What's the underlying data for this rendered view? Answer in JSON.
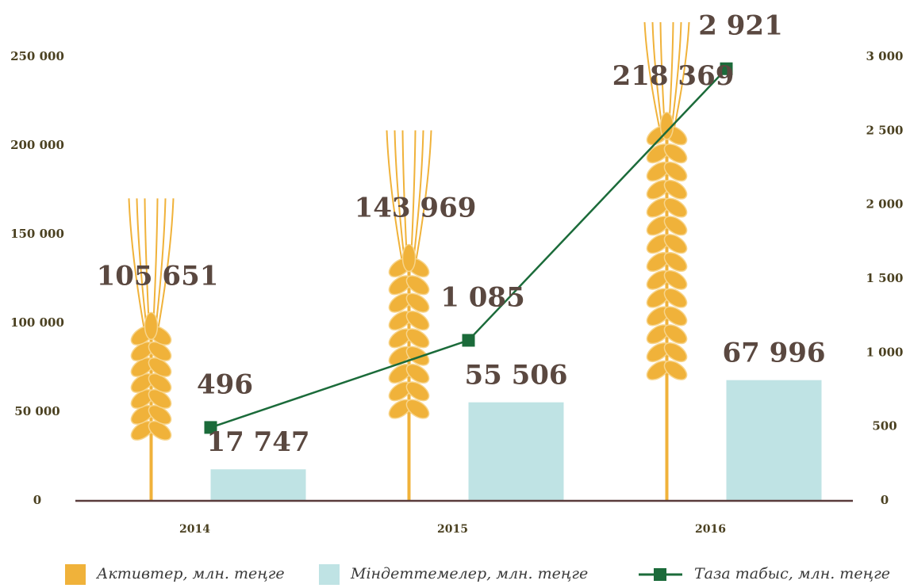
{
  "chart_data": {
    "type": "combo",
    "categories": [
      "2014",
      "2015",
      "2016"
    ],
    "series": [
      {
        "name": "Активтер, млн. теңге",
        "type": "wheat",
        "color": "#f0b23a",
        "values": [
          105651,
          143969,
          218369
        ],
        "value_labels": [
          "105 651",
          "143 969",
          "218 369"
        ]
      },
      {
        "name": "Міндеттемелер, млн. теңге",
        "type": "bar",
        "color": "#bfe3e4",
        "values": [
          17747,
          55506,
          67996
        ],
        "value_labels": [
          "17 747",
          "55 506",
          "67 996"
        ]
      },
      {
        "name": "Таза табыс, млн. теңге",
        "type": "line",
        "axis": "y2",
        "color": "#1b6b3a",
        "values": [
          496,
          1085,
          2921
        ],
        "value_labels": [
          "496",
          "1 085",
          "2 921"
        ]
      }
    ],
    "ylim": [
      0,
      250000
    ],
    "yticks": [
      0,
      {
        "value": 50000,
        "label": "50 000"
      },
      {
        "value": 100000,
        "label": "100 000"
      },
      {
        "value": 150000,
        "label": "150 000"
      },
      {
        "value": 200000,
        "label": "200 000"
      },
      {
        "value": 250000,
        "label": "250 000"
      }
    ],
    "y2lim": [
      0,
      3000
    ],
    "y2ticks": [
      0,
      500,
      {
        "value": 1000,
        "label": "1 000"
      },
      {
        "value": 1500,
        "label": "1 500"
      },
      {
        "value": 2000,
        "label": "2 000"
      },
      {
        "value": 2500,
        "label": "2 500"
      },
      {
        "value": 3000,
        "label": "3 000"
      }
    ],
    "legend": "bottom"
  }
}
